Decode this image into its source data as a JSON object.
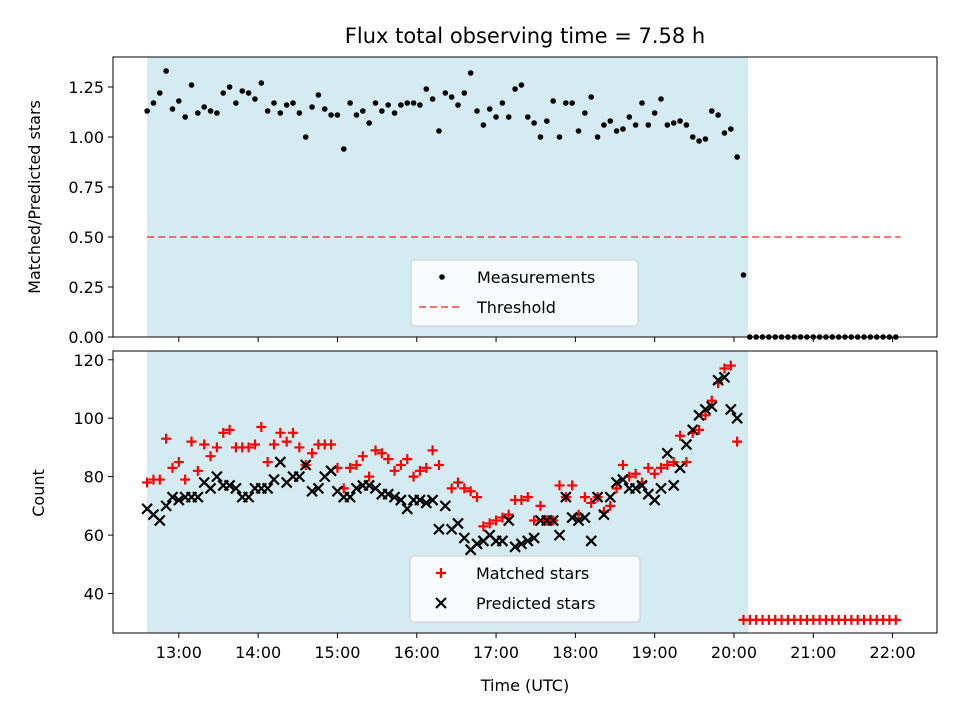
{
  "figure": {
    "title": "Flux total observing time = 7.58 h",
    "xlabel": "Time (UTC)",
    "xticks": [
      {
        "h": 13,
        "label": "13:00"
      },
      {
        "h": 14,
        "label": "14:00"
      },
      {
        "h": 15,
        "label": "15:00"
      },
      {
        "h": 16,
        "label": "16:00"
      },
      {
        "h": 17,
        "label": "17:00"
      },
      {
        "h": 18,
        "label": "18:00"
      },
      {
        "h": 19,
        "label": "19:00"
      },
      {
        "h": 20,
        "label": "20:00"
      },
      {
        "h": 21,
        "label": "21:00"
      },
      {
        "h": 22,
        "label": "22:00"
      }
    ],
    "xlim": [
      12.17,
      22.56
    ],
    "observing_window": [
      12.6,
      20.18
    ]
  },
  "colors": {
    "observing_window": "#add8e6",
    "measurements": "#000000",
    "threshold": "#ff0000",
    "matched": "#ff0000",
    "predicted": "#000000"
  },
  "chart_data": [
    {
      "type": "scatter",
      "ylabel": "Matched/Predicted stars",
      "ylim": [
        0,
        1.4
      ],
      "yticks": [
        "0.00",
        "0.25",
        "0.50",
        "0.75",
        "1.00",
        "1.25"
      ],
      "legend": {
        "placement": "lower-center",
        "entries": [
          "Measurements",
          "Threshold"
        ]
      },
      "threshold": {
        "y": 0.5,
        "x": [
          12.6,
          22.1
        ]
      },
      "x": [
        12.6,
        12.68,
        12.76,
        12.84,
        12.92,
        13.0,
        13.08,
        13.16,
        13.24,
        13.32,
        13.4,
        13.48,
        13.56,
        13.64,
        13.72,
        13.8,
        13.88,
        13.96,
        14.04,
        14.12,
        14.2,
        14.28,
        14.36,
        14.44,
        14.52,
        14.6,
        14.68,
        14.76,
        14.84,
        14.92,
        15.0,
        15.08,
        15.16,
        15.24,
        15.32,
        15.4,
        15.48,
        15.56,
        15.64,
        15.72,
        15.8,
        15.88,
        15.96,
        16.04,
        16.12,
        16.2,
        16.28,
        16.36,
        16.44,
        16.52,
        16.6,
        16.68,
        16.76,
        16.84,
        16.92,
        17.0,
        17.08,
        17.16,
        17.24,
        17.32,
        17.4,
        17.48,
        17.56,
        17.64,
        17.72,
        17.8,
        17.88,
        17.96,
        18.04,
        18.12,
        18.2,
        18.28,
        18.36,
        18.44,
        18.52,
        18.6,
        18.68,
        18.76,
        18.84,
        18.92,
        19.0,
        19.08,
        19.16,
        19.24,
        19.32,
        19.4,
        19.48,
        19.56,
        19.64,
        19.72,
        19.8,
        19.88,
        19.96,
        20.04,
        20.12,
        20.2,
        20.28,
        20.36,
        20.44,
        20.52,
        20.6,
        20.68,
        20.76,
        20.84,
        20.92,
        21.0,
        21.08,
        21.16,
        21.24,
        21.32,
        21.4,
        21.48,
        21.56,
        21.64,
        21.72,
        21.8,
        21.88,
        21.96,
        22.04,
        22.1
      ],
      "series": [
        {
          "name": "Measurements",
          "values": [
            1.13,
            1.17,
            1.22,
            1.33,
            1.14,
            1.18,
            1.1,
            1.26,
            1.12,
            1.15,
            1.13,
            1.12,
            1.22,
            1.25,
            1.17,
            1.23,
            1.22,
            1.19,
            1.27,
            1.13,
            1.17,
            1.12,
            1.16,
            1.17,
            1.12,
            1.0,
            1.15,
            1.21,
            1.14,
            1.11,
            1.11,
            0.94,
            1.17,
            1.11,
            1.13,
            1.07,
            1.17,
            1.13,
            1.16,
            1.12,
            1.16,
            1.17,
            1.17,
            1.16,
            1.24,
            1.19,
            1.03,
            1.22,
            1.2,
            1.16,
            1.22,
            1.32,
            1.13,
            1.06,
            1.14,
            1.1,
            1.17,
            1.1,
            1.24,
            1.26,
            1.1,
            1.07,
            1.0,
            1.08,
            1.18,
            1.0,
            1.17,
            1.17,
            1.03,
            1.12,
            1.2,
            1.0,
            1.06,
            1.08,
            1.03,
            1.04,
            1.1,
            1.06,
            1.17,
            1.06,
            1.12,
            1.19,
            1.06,
            1.07,
            1.08,
            1.06,
            1.0,
            0.98,
            0.99,
            1.13,
            1.11,
            1.02,
            1.04,
            0.9,
            0.31,
            0.0,
            0.0,
            0.0,
            0.0,
            0.0,
            0.0,
            0.0,
            0.0,
            0.0,
            0.0,
            0.0,
            0.0,
            0.0,
            0.0,
            0.0,
            0.0,
            0.0,
            0.0,
            0.0,
            0.0,
            0.0,
            0.0,
            0.0,
            0.0
          ]
        }
      ]
    },
    {
      "type": "scatter",
      "ylabel": "Count",
      "ylim": [
        26.5,
        123
      ],
      "yticks": [
        "40",
        "60",
        "80",
        "100",
        "120"
      ],
      "legend": {
        "placement": "lower-center",
        "entries": [
          "Matched stars",
          "Predicted stars"
        ]
      },
      "x": [
        12.6,
        12.68,
        12.76,
        12.84,
        12.92,
        13.0,
        13.08,
        13.16,
        13.24,
        13.32,
        13.4,
        13.48,
        13.56,
        13.64,
        13.72,
        13.8,
        13.88,
        13.96,
        14.04,
        14.12,
        14.2,
        14.28,
        14.36,
        14.44,
        14.52,
        14.6,
        14.68,
        14.76,
        14.84,
        14.92,
        15.0,
        15.08,
        15.16,
        15.24,
        15.32,
        15.4,
        15.48,
        15.56,
        15.64,
        15.72,
        15.8,
        15.88,
        15.96,
        16.04,
        16.12,
        16.2,
        16.28,
        16.36,
        16.44,
        16.52,
        16.6,
        16.68,
        16.76,
        16.84,
        16.92,
        17.0,
        17.08,
        17.16,
        17.24,
        17.32,
        17.4,
        17.48,
        17.56,
        17.64,
        17.72,
        17.8,
        17.88,
        17.96,
        18.04,
        18.12,
        18.2,
        18.28,
        18.36,
        18.44,
        18.52,
        18.6,
        18.68,
        18.76,
        18.84,
        18.92,
        19.0,
        19.08,
        19.16,
        19.24,
        19.32,
        19.4,
        19.48,
        19.56,
        19.64,
        19.72,
        19.8,
        19.88,
        19.96,
        20.04,
        20.12,
        20.2,
        20.28,
        20.36,
        20.44,
        20.52,
        20.6,
        20.68,
        20.76,
        20.84,
        20.92,
        21.0,
        21.08,
        21.16,
        21.24,
        21.32,
        21.4,
        21.48,
        21.56,
        21.64,
        21.72,
        21.8,
        21.88,
        21.96,
        22.04,
        22.1
      ],
      "series": [
        {
          "name": "Matched stars",
          "values": [
            78,
            79,
            79,
            93,
            83,
            85,
            79,
            92,
            82,
            91,
            87,
            90,
            95,
            96,
            90,
            90,
            90,
            91,
            97,
            85,
            91,
            95,
            92,
            95,
            90,
            84,
            88,
            91,
            91,
            91,
            83,
            76,
            83,
            84,
            87,
            80,
            89,
            88,
            86,
            82,
            84,
            86,
            80,
            82,
            83,
            89,
            84,
            null,
            76,
            78,
            76,
            75,
            73,
            63,
            64,
            65,
            66,
            67,
            72,
            72,
            73,
            65,
            70,
            65,
            65,
            77,
            73,
            77,
            67,
            73,
            71,
            73,
            68,
            70,
            76,
            84,
            80,
            81,
            78,
            83,
            81,
            83,
            84,
            85,
            94,
            85,
            95,
            96,
            101,
            106,
            112,
            117,
            118,
            92,
            31,
            31,
            31,
            31,
            31,
            31,
            31,
            31,
            31,
            31,
            31,
            31,
            31,
            31,
            31,
            31,
            31,
            31,
            31,
            31,
            31,
            31,
            31,
            31,
            31
          ]
        },
        {
          "name": "Predicted stars",
          "values": [
            69,
            67,
            65,
            70,
            73,
            72,
            73,
            73,
            73,
            78,
            76,
            80,
            77,
            77,
            76,
            73,
            73,
            76,
            76,
            76,
            79,
            85,
            78,
            80,
            80,
            84,
            75,
            76,
            80,
            82,
            75,
            73,
            73,
            76,
            77,
            77,
            76,
            74,
            74,
            73,
            72,
            69,
            72,
            72,
            71,
            72,
            62,
            70,
            62,
            64,
            59,
            55,
            57,
            58,
            60,
            58,
            58,
            65,
            56,
            57,
            58,
            59,
            65,
            65,
            65,
            60,
            73,
            66,
            65,
            66,
            58,
            73,
            67,
            73,
            78,
            79,
            76,
            76,
            77,
            74,
            72,
            76,
            88,
            77,
            83,
            91,
            96,
            101,
            103,
            104,
            113,
            114,
            103,
            100,
            null,
            null,
            null,
            null,
            null,
            null,
            null,
            null,
            null,
            null,
            null,
            null,
            null,
            null,
            null,
            null,
            null,
            null,
            null,
            null,
            null,
            null,
            null,
            null,
            null
          ]
        }
      ]
    }
  ]
}
